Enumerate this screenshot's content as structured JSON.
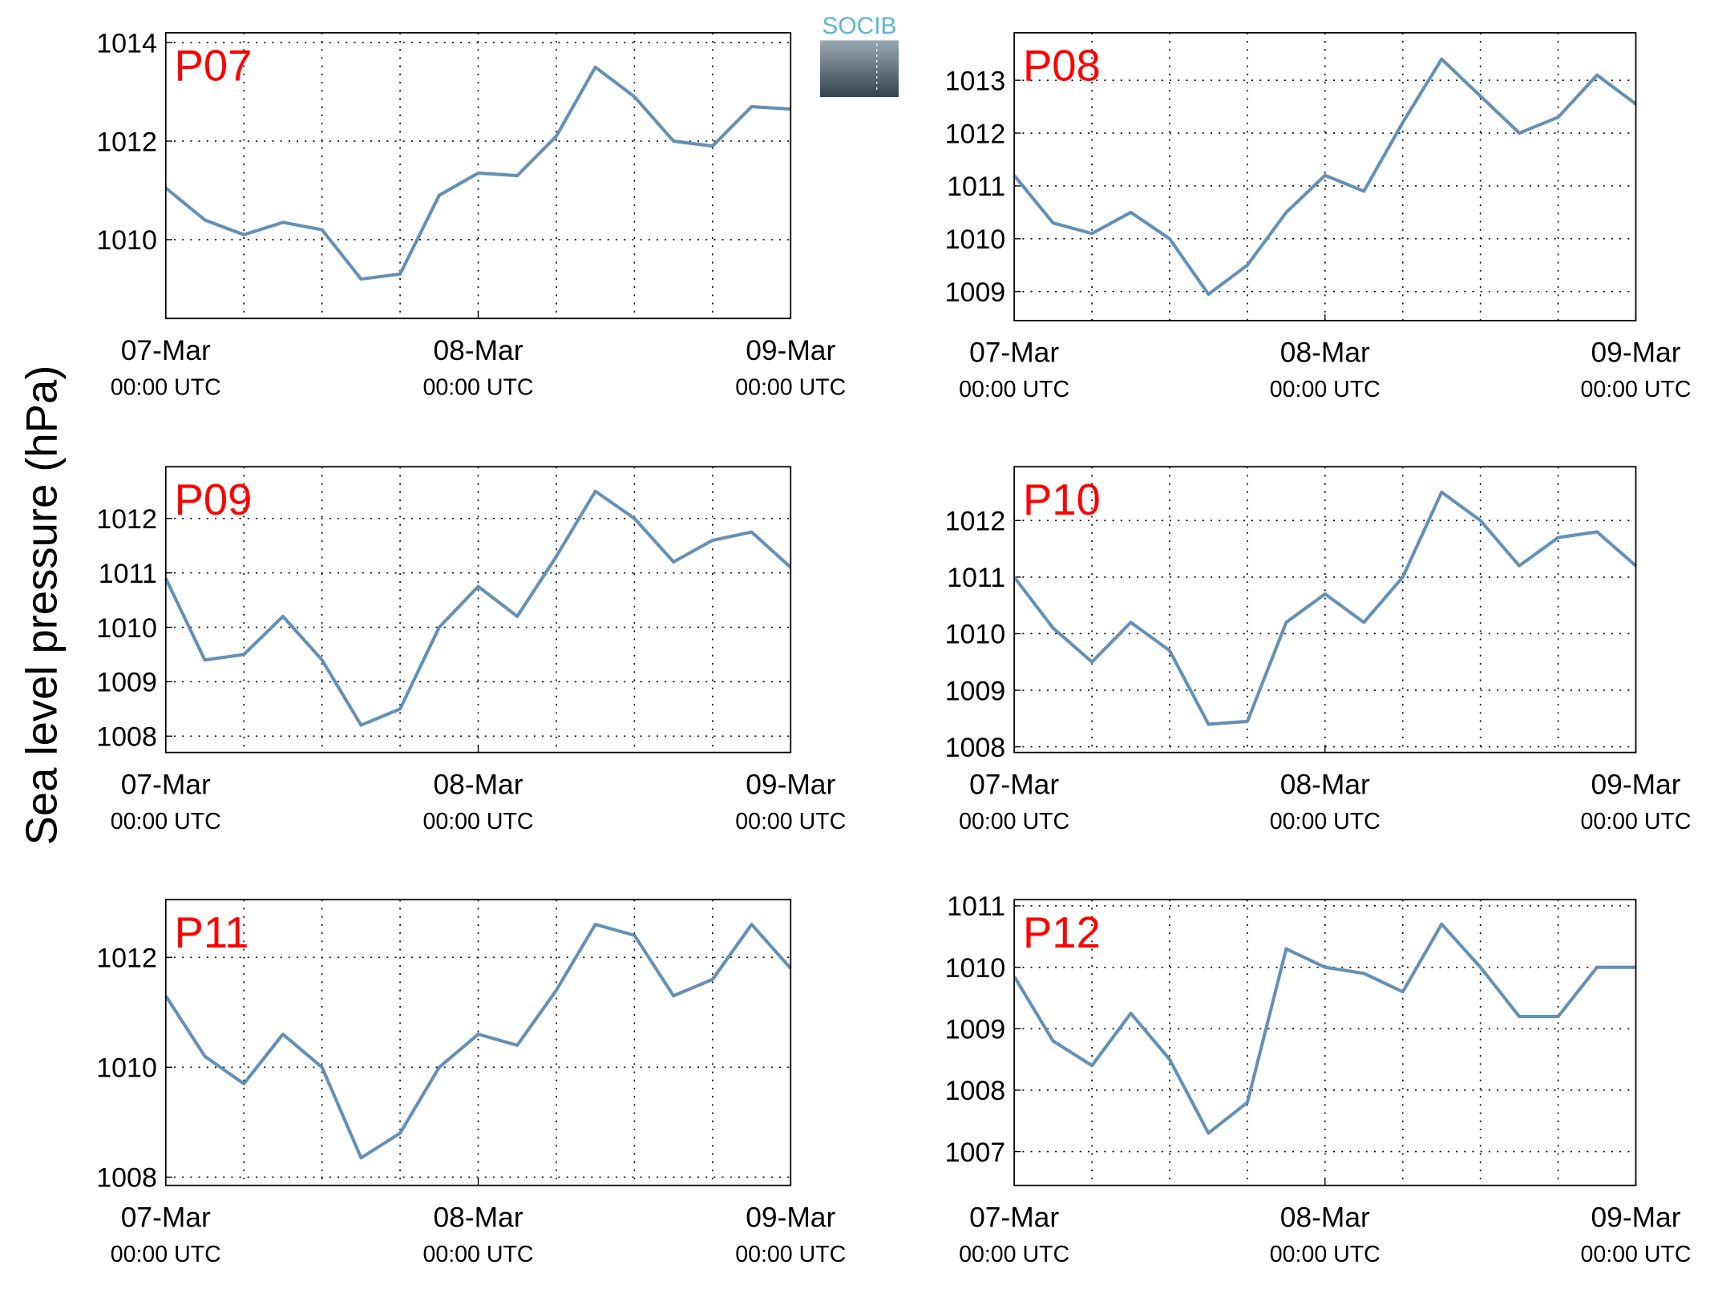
{
  "ylabel": "Sea level pressure (hPa)",
  "logo": "SOCIB",
  "chart_data": [
    {
      "type": "line",
      "title": "P07",
      "color": "#6590b5",
      "grid": true,
      "x": [
        0,
        3,
        6,
        9,
        12,
        15,
        18,
        21,
        24,
        27,
        30,
        33,
        36,
        39,
        42,
        45,
        48
      ],
      "values": [
        1011.05,
        1010.4,
        1010.1,
        1010.35,
        1010.2,
        1009.2,
        1009.3,
        1010.9,
        1011.35,
        1011.3,
        1012.1,
        1013.5,
        1012.9,
        1012.0,
        1011.9,
        1012.7,
        1012.65
      ],
      "xlim": [
        0,
        48
      ],
      "xticks": [
        {
          "value": 0,
          "label": [
            "07-Mar",
            "00:00 UTC"
          ]
        },
        {
          "value": 24,
          "label": [
            "08-Mar",
            "00:00 UTC"
          ]
        },
        {
          "value": 48,
          "label": [
            "09-Mar",
            "00:00 UTC"
          ]
        }
      ],
      "xgrid": [
        6,
        12,
        18,
        24,
        30,
        36,
        42
      ],
      "ylim": [
        1008.4,
        1014.2
      ],
      "yticks": [
        1010,
        1012,
        1014
      ]
    },
    {
      "type": "line",
      "title": "P08",
      "color": "#6590b5",
      "grid": true,
      "x": [
        0,
        3,
        6,
        9,
        12,
        15,
        18,
        21,
        24,
        27,
        30,
        33,
        36,
        39,
        42,
        45,
        48
      ],
      "values": [
        1011.2,
        1010.3,
        1010.1,
        1010.5,
        1010.0,
        1008.95,
        1009.5,
        1010.5,
        1011.2,
        1010.9,
        1012.2,
        1013.4,
        1012.7,
        1012.0,
        1012.3,
        1013.1,
        1012.55
      ],
      "xlim": [
        0,
        48
      ],
      "xticks": [
        {
          "value": 0,
          "label": [
            "07-Mar",
            "00:00 UTC"
          ]
        },
        {
          "value": 24,
          "label": [
            "08-Mar",
            "00:00 UTC"
          ]
        },
        {
          "value": 48,
          "label": [
            "09-Mar",
            "00:00 UTC"
          ]
        }
      ],
      "xgrid": [
        6,
        12,
        18,
        24,
        30,
        36,
        42
      ],
      "ylim": [
        1008.45,
        1013.9
      ],
      "yticks": [
        1009,
        1010,
        1011,
        1012,
        1013
      ]
    },
    {
      "type": "line",
      "title": "P09",
      "color": "#6590b5",
      "grid": true,
      "x": [
        0,
        3,
        6,
        9,
        12,
        15,
        18,
        21,
        24,
        27,
        30,
        33,
        36,
        39,
        42,
        45,
        48
      ],
      "values": [
        1010.9,
        1009.4,
        1009.5,
        1010.2,
        1009.4,
        1008.2,
        1008.5,
        1010.0,
        1010.75,
        1010.2,
        1011.3,
        1012.5,
        1012.0,
        1011.2,
        1011.6,
        1011.75,
        1011.1
      ],
      "xlim": [
        0,
        48
      ],
      "xticks": [
        {
          "value": 0,
          "label": [
            "07-Mar",
            "00:00 UTC"
          ]
        },
        {
          "value": 24,
          "label": [
            "08-Mar",
            "00:00 UTC"
          ]
        },
        {
          "value": 48,
          "label": [
            "09-Mar",
            "00:00 UTC"
          ]
        }
      ],
      "xgrid": [
        6,
        12,
        18,
        24,
        30,
        36,
        42
      ],
      "ylim": [
        1007.7,
        1012.95
      ],
      "yticks": [
        1008,
        1009,
        1010,
        1011,
        1012
      ]
    },
    {
      "type": "line",
      "title": "P10",
      "color": "#6590b5",
      "grid": true,
      "x": [
        0,
        3,
        6,
        9,
        12,
        15,
        18,
        21,
        24,
        27,
        30,
        33,
        36,
        39,
        42,
        45,
        48
      ],
      "values": [
        1011.0,
        1010.1,
        1009.5,
        1010.2,
        1009.7,
        1008.4,
        1008.45,
        1010.2,
        1010.7,
        1010.2,
        1011.0,
        1012.5,
        1012.0,
        1011.2,
        1011.7,
        1011.8,
        1011.2
      ],
      "xlim": [
        0,
        48
      ],
      "xticks": [
        {
          "value": 0,
          "label": [
            "07-Mar",
            "00:00 UTC"
          ]
        },
        {
          "value": 24,
          "label": [
            "08-Mar",
            "00:00 UTC"
          ]
        },
        {
          "value": 48,
          "label": [
            "09-Mar",
            "00:00 UTC"
          ]
        }
      ],
      "xgrid": [
        6,
        12,
        18,
        24,
        30,
        36,
        42
      ],
      "ylim": [
        1007.9,
        1012.95
      ],
      "yticks": [
        1008,
        1009,
        1010,
        1011,
        1012
      ]
    },
    {
      "type": "line",
      "title": "P11",
      "color": "#6590b5",
      "grid": true,
      "x": [
        0,
        3,
        6,
        9,
        12,
        15,
        18,
        21,
        24,
        27,
        30,
        33,
        36,
        39,
        42,
        45,
        48
      ],
      "values": [
        1011.3,
        1010.2,
        1009.7,
        1010.6,
        1010.0,
        1008.35,
        1008.8,
        1010.0,
        1010.6,
        1010.4,
        1011.4,
        1012.6,
        1012.4,
        1011.3,
        1011.6,
        1012.6,
        1011.8
      ],
      "xlim": [
        0,
        48
      ],
      "xticks": [
        {
          "value": 0,
          "label": [
            "07-Mar",
            "00:00 UTC"
          ]
        },
        {
          "value": 24,
          "label": [
            "08-Mar",
            "00:00 UTC"
          ]
        },
        {
          "value": 48,
          "label": [
            "09-Mar",
            "00:00 UTC"
          ]
        }
      ],
      "xgrid": [
        6,
        12,
        18,
        24,
        30,
        36,
        42
      ],
      "ylim": [
        1007.85,
        1013.05
      ],
      "yticks": [
        1008,
        1010,
        1012
      ]
    },
    {
      "type": "line",
      "title": "P12",
      "color": "#6590b5",
      "grid": true,
      "x": [
        0,
        3,
        6,
        9,
        12,
        15,
        18,
        21,
        24,
        27,
        30,
        33,
        36,
        39,
        42,
        45,
        48
      ],
      "values": [
        1009.85,
        1008.8,
        1008.4,
        1009.25,
        1008.5,
        1007.3,
        1007.8,
        1010.3,
        1010.0,
        1009.9,
        1009.6,
        1010.7,
        1010.0,
        1009.2,
        1009.2,
        1010.0,
        1010.0
      ],
      "xlim": [
        0,
        48
      ],
      "xticks": [
        {
          "value": 0,
          "label": [
            "07-Mar",
            "00:00 UTC"
          ]
        },
        {
          "value": 24,
          "label": [
            "08-Mar",
            "00:00 UTC"
          ]
        },
        {
          "value": 48,
          "label": [
            "09-Mar",
            "00:00 UTC"
          ]
        }
      ],
      "xgrid": [
        6,
        12,
        18,
        24,
        30,
        36,
        42
      ],
      "ylim": [
        1006.45,
        1011.1
      ],
      "yticks": [
        1007,
        1008,
        1009,
        1010,
        1011
      ]
    }
  ]
}
